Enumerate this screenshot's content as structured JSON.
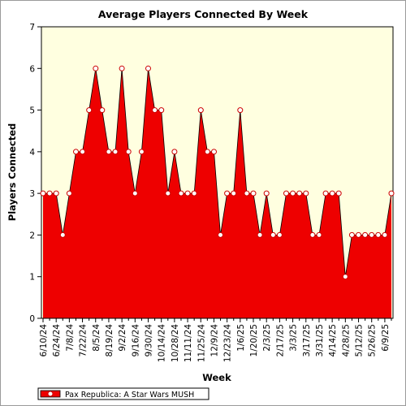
{
  "chart_data": {
    "type": "area",
    "title": "Average Players Connected By Week",
    "xlabel": "Week",
    "ylabel": "Players Connected",
    "ylim": [
      0,
      7
    ],
    "yticks": [
      0,
      1,
      2,
      3,
      4,
      5,
      6,
      7
    ],
    "grid": false,
    "legend": "bottom-left",
    "colors": {
      "plot_background": "#ffffe0",
      "area_fill": "#ee0000",
      "line": "#000000",
      "marker_fill": "#ffffff",
      "marker_stroke": "#cc0000"
    },
    "x_tick_labels": [
      "6/10/24",
      "6/24/24",
      "7/8/24",
      "7/22/24",
      "8/5/24",
      "8/19/24",
      "9/2/24",
      "9/16/24",
      "9/30/24",
      "10/14/24",
      "10/28/24",
      "11/11/24",
      "11/25/24",
      "12/9/24",
      "12/23/24",
      "1/6/25",
      "1/20/25",
      "2/3/25",
      "2/17/25",
      "3/3/25",
      "3/17/25",
      "3/31/25",
      "4/14/25",
      "4/28/25",
      "5/12/25",
      "5/26/25",
      "6/9/25"
    ],
    "series": [
      {
        "name": "Pax Republica: A Star Wars MUSH",
        "x": [
          "6/10/24",
          "6/17/24",
          "6/24/24",
          "7/1/24",
          "7/8/24",
          "7/15/24",
          "7/22/24",
          "7/29/24",
          "8/5/24",
          "8/12/24",
          "8/19/24",
          "8/26/24",
          "9/2/24",
          "9/9/24",
          "9/16/24",
          "9/23/24",
          "9/30/24",
          "10/7/24",
          "10/14/24",
          "10/21/24",
          "10/28/24",
          "11/4/24",
          "11/11/24",
          "11/18/24",
          "11/25/24",
          "12/2/24",
          "12/9/24",
          "12/16/24",
          "12/23/24",
          "12/30/24",
          "1/6/25",
          "1/13/25",
          "1/20/25",
          "1/27/25",
          "2/3/25",
          "2/10/25",
          "2/17/25",
          "2/24/25",
          "3/3/25",
          "3/10/25",
          "3/17/25",
          "3/24/25",
          "3/31/25",
          "4/7/25",
          "4/14/25",
          "4/21/25",
          "4/28/25",
          "5/5/25",
          "5/12/25",
          "5/19/25",
          "5/26/25",
          "6/2/25",
          "6/9/25",
          "6/16/25"
        ],
        "values": [
          3,
          3,
          3,
          2,
          3,
          4,
          4,
          5,
          6,
          5,
          4,
          4,
          6,
          4,
          3,
          4,
          6,
          5,
          5,
          3,
          4,
          3,
          3,
          3,
          5,
          4,
          4,
          2,
          3,
          3,
          5,
          3,
          3,
          2,
          3,
          2,
          2,
          3,
          3,
          3,
          3,
          2,
          2,
          3,
          3,
          3,
          1,
          2,
          2,
          2,
          2,
          2,
          2,
          3
        ]
      }
    ]
  }
}
